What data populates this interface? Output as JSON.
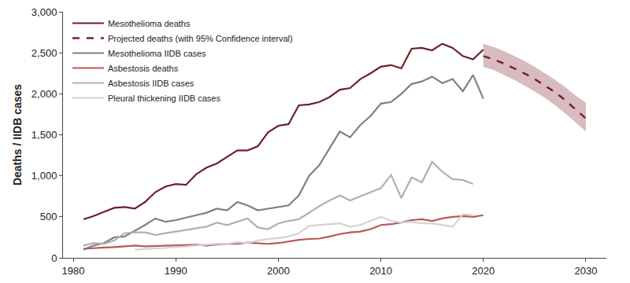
{
  "chart_data": {
    "type": "line",
    "y_label": "Deaths / IIDB cases",
    "x": [
      1981,
      1982,
      1983,
      1984,
      1985,
      1986,
      1987,
      1988,
      1989,
      1990,
      1991,
      1992,
      1993,
      1994,
      1995,
      1996,
      1997,
      1998,
      1999,
      2000,
      2001,
      2002,
      2003,
      2004,
      2005,
      2006,
      2007,
      2008,
      2009,
      2010,
      2011,
      2012,
      2013,
      2014,
      2015,
      2016,
      2017,
      2018,
      2019,
      2020,
      2021,
      2022,
      2023,
      2024,
      2025,
      2026,
      2027,
      2028,
      2029,
      2030
    ],
    "xlim": [
      1979,
      2032
    ],
    "xticks": [
      1980,
      1990,
      2000,
      2010,
      2020,
      2030
    ],
    "ylim": [
      0,
      3000
    ],
    "yticks": [
      0,
      500,
      {
        "value": 1000,
        "label": "1,000"
      },
      {
        "value": 1500,
        "label": "1,500"
      },
      {
        "value": 2000,
        "label": "2,000"
      },
      {
        "value": 2500,
        "label": "2,500"
      },
      {
        "value": 3000,
        "label": "3,000"
      }
    ],
    "grid": false,
    "legend": "top-left",
    "series": [
      {
        "name": "Mesothelioma deaths",
        "color": "#6d2027",
        "line_style": "solid",
        "values": [
          470,
          510,
          560,
          610,
          620,
          600,
          680,
          800,
          870,
          900,
          890,
          1020,
          1100,
          1150,
          1230,
          1310,
          1310,
          1360,
          1530,
          1610,
          1630,
          1860,
          1870,
          1900,
          1960,
          2050,
          2070,
          2180,
          2250,
          2330,
          2350,
          2310,
          2550,
          2560,
          2530,
          2610,
          2560,
          2460,
          2420,
          2540,
          null,
          null,
          null,
          null,
          null,
          null,
          null,
          null,
          null,
          null
        ]
      },
      {
        "name": "Projected deaths (with 95% Confidence interval)",
        "color": "#7a1f2b",
        "line_style": "dash",
        "values": [
          null,
          null,
          null,
          null,
          null,
          null,
          null,
          null,
          null,
          null,
          null,
          null,
          null,
          null,
          null,
          null,
          null,
          null,
          null,
          null,
          null,
          null,
          null,
          null,
          null,
          null,
          null,
          null,
          null,
          null,
          null,
          null,
          null,
          null,
          null,
          null,
          null,
          null,
          null,
          2460,
          2420,
          2370,
          2310,
          2250,
          2180,
          2100,
          2020,
          1920,
          1810,
          1700
        ],
        "lower": [
          null,
          null,
          null,
          null,
          null,
          null,
          null,
          null,
          null,
          null,
          null,
          null,
          null,
          null,
          null,
          null,
          null,
          null,
          null,
          null,
          null,
          null,
          null,
          null,
          null,
          null,
          null,
          null,
          null,
          null,
          null,
          null,
          null,
          null,
          null,
          null,
          null,
          null,
          null,
          2330,
          2290,
          2230,
          2170,
          2100,
          2030,
          1950,
          1860,
          1760,
          1650,
          1540
        ],
        "upper": [
          null,
          null,
          null,
          null,
          null,
          null,
          null,
          null,
          null,
          null,
          null,
          null,
          null,
          null,
          null,
          null,
          null,
          null,
          null,
          null,
          null,
          null,
          null,
          null,
          null,
          null,
          null,
          null,
          null,
          null,
          null,
          null,
          null,
          null,
          null,
          null,
          null,
          null,
          null,
          2610,
          2570,
          2520,
          2460,
          2400,
          2330,
          2250,
          2170,
          2080,
          1980,
          1890
        ]
      },
      {
        "name": "Mesothelioma IIDB cases",
        "color": "#808080",
        "line_style": "solid",
        "values": [
          100,
          150,
          180,
          250,
          260,
          330,
          400,
          480,
          440,
          460,
          490,
          520,
          550,
          600,
          580,
          680,
          640,
          580,
          600,
          620,
          640,
          760,
          1000,
          1130,
          1340,
          1540,
          1470,
          1620,
          1730,
          1880,
          1900,
          2000,
          2120,
          2150,
          2210,
          2130,
          2180,
          2030,
          2230,
          1940,
          null,
          null,
          null,
          null,
          null,
          null,
          null,
          null,
          null,
          null
        ]
      },
      {
        "name": "Asbestosis deaths",
        "color": "#b5595a",
        "line_style": "solid",
        "values": [
          110,
          120,
          125,
          130,
          140,
          150,
          140,
          145,
          150,
          155,
          160,
          160,
          150,
          165,
          170,
          170,
          185,
          175,
          170,
          180,
          200,
          220,
          230,
          235,
          260,
          290,
          310,
          320,
          350,
          400,
          410,
          430,
          460,
          470,
          450,
          480,
          500,
          510,
          500,
          520,
          null,
          null,
          null,
          null,
          null,
          null,
          null,
          null,
          null,
          null
        ]
      },
      {
        "name": "Asbestosis IIDB cases",
        "color": "#b0b0b0",
        "line_style": "solid",
        "values": [
          150,
          180,
          170,
          210,
          300,
          310,
          310,
          280,
          300,
          320,
          340,
          360,
          380,
          430,
          400,
          440,
          480,
          370,
          350,
          420,
          450,
          470,
          550,
          630,
          700,
          760,
          700,
          750,
          800,
          850,
          1010,
          730,
          980,
          920,
          1170,
          1050,
          960,
          950,
          900,
          null,
          null,
          null,
          null,
          null,
          null,
          null,
          null,
          null,
          null,
          null
        ]
      },
      {
        "name": "Pleural thickening IIDB cases",
        "color": "#d3d3d3",
        "line_style": "solid",
        "values": [
          null,
          null,
          null,
          null,
          null,
          100,
          110,
          115,
          120,
          130,
          140,
          150,
          160,
          170,
          170,
          190,
          180,
          210,
          230,
          240,
          260,
          300,
          390,
          400,
          410,
          420,
          380,
          400,
          450,
          500,
          450,
          430,
          440,
          420,
          420,
          400,
          380,
          530,
          520,
          null,
          null,
          null,
          null,
          null,
          null,
          null,
          null,
          null,
          null,
          null
        ]
      }
    ]
  }
}
